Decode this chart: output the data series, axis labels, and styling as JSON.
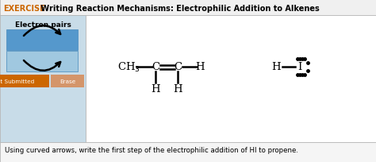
{
  "title_bold": "EXERCISE",
  "title_rest": " Writing Reaction Mechanisms: Electrophilic Addition to Alkenes",
  "title_bg": "#f0f0f0",
  "title_text_color": "#000000",
  "title_bold_color": "#cc6600",
  "panel_bg": "#c8dce8",
  "white_area_bg": "#ffffff",
  "electron_pairs_label": "Electron pairs",
  "button_not_submitted": "ot Submitted",
  "button_erase": "Erase",
  "button_not_submitted_bg": "#cc6600",
  "button_erase_bg": "#d4956a",
  "footer_text": "Using curved arrows, write the first step of the electrophilic addition of HI to propene.",
  "footer_bg": "#f5f5f5",
  "main_bg": "#e0e0e0",
  "border_color": "#b0b0b0"
}
